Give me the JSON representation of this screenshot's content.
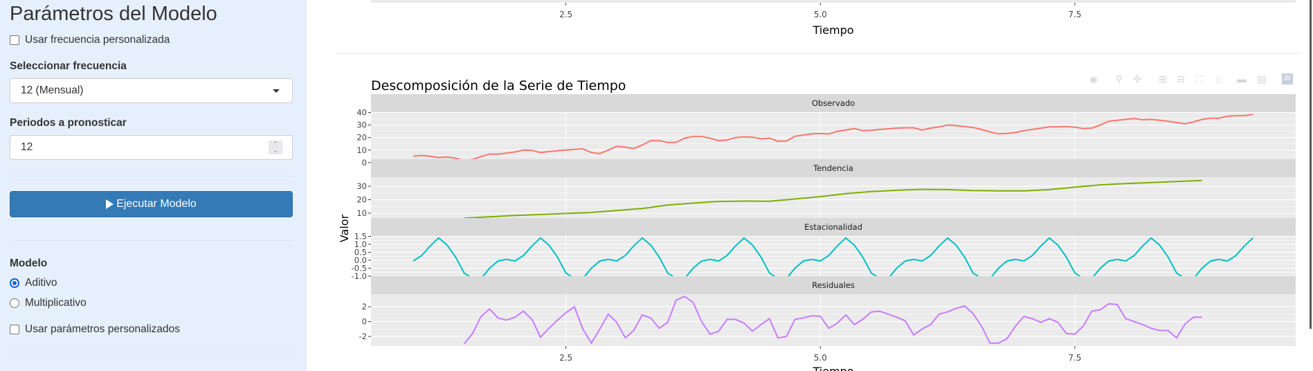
{
  "sidebar": {
    "title": "Parámetros del Modelo",
    "custom_freq_label": "Usar frecuencia personalizada",
    "custom_freq_checked": false,
    "freq_label": "Seleccionar frecuencia",
    "freq_value": "12 (Mensual)",
    "periods_label": "Periodos a pronosticar",
    "periods_value": "12",
    "run_button": "Ejecutar Modelo",
    "model_label": "Modelo",
    "model_options": [
      "Aditivo",
      "Multiplicativo"
    ],
    "model_selected": "Aditivo",
    "custom_params_label": "Usar parámetros personalizados",
    "custom_params_checked": false
  },
  "top_chart": {
    "x_ticks": [
      "2.5",
      "5.0",
      "7.5"
    ],
    "xlabel": "Tiempo"
  },
  "modebar": {
    "icons": [
      "camera-icon",
      "zoom-icon",
      "pan-icon",
      "zoom-in-icon",
      "zoom-out-icon",
      "autoscale-icon",
      "home-icon",
      "hover-closest-icon",
      "hover-compare-icon",
      "plotly-logo-icon"
    ]
  },
  "chart_data": {
    "type": "line",
    "title": "Descomposición de la Serie de Tiempo",
    "xlabel": "Tiempo",
    "ylabel": "Valor",
    "xlim": [
      0.585,
      9.67
    ],
    "x_ticks": [
      2.5,
      5.0,
      7.5
    ],
    "x_tick_labels": [
      "2.5",
      "5.0",
      "7.5"
    ],
    "grid": true,
    "panels": [
      {
        "name": "Observado",
        "color": "#F8766D",
        "x_start": 1.0,
        "ylim": [
          2.7,
          40.3
        ],
        "y_ticks": [
          0,
          10,
          20,
          30,
          40
        ],
        "y_tick_labels": [
          "0",
          "10",
          "20",
          "30",
          "40"
        ],
        "values": [
          5,
          5.7,
          5,
          4,
          4.5,
          3.5,
          1.5,
          2.5,
          4.8,
          6.8,
          6.8,
          7.5,
          8.5,
          10,
          9.8,
          8,
          8.8,
          9.5,
          10,
          10.5,
          11,
          8,
          7.2,
          10,
          13,
          12.3,
          11.2,
          14,
          17.5,
          17.5,
          16,
          16.2,
          19.5,
          20.8,
          20.8,
          19.5,
          17.5,
          18,
          20,
          20.5,
          20.3,
          19,
          19.5,
          17,
          17.2,
          21,
          22,
          23,
          23.2,
          22.8,
          25,
          26,
          27.2,
          25.5,
          25.8,
          26.5,
          27,
          27.5,
          27.8,
          27.8,
          26,
          27.5,
          28.5,
          30,
          29.5,
          28.8,
          28,
          26.5,
          24.5,
          23,
          23.3,
          24,
          25.5,
          26.5,
          27.5,
          28.5,
          28.5,
          28.8,
          28.3,
          27.2,
          27.5,
          30,
          33,
          33.8,
          34.5,
          35.2,
          34.2,
          34.5,
          33.8,
          33,
          32,
          31,
          32.5,
          34.5,
          35.5,
          35.5,
          37,
          37.5,
          37.5,
          38.5
        ]
      },
      {
        "name": "Tendencia",
        "color": "#7CAE00",
        "x_start": 1.5,
        "ylim": [
          6.4,
          36.7
        ],
        "y_ticks": [
          10,
          20,
          30
        ],
        "y_tick_labels": [
          "10",
          "20",
          "30"
        ],
        "values": [
          6.3,
          6.63,
          6.97,
          7.3,
          7.63,
          7.97,
          8.3,
          8.53,
          8.77,
          9.0,
          9.27,
          9.53,
          9.8,
          10.03,
          10.27,
          10.5,
          11.0,
          11.5,
          12.0,
          12.5,
          13.0,
          13.5,
          14.33,
          15.17,
          16.0,
          16.5,
          17.0,
          17.5,
          17.9,
          18.3,
          18.7,
          18.8,
          18.9,
          19.0,
          18.97,
          18.93,
          18.9,
          19.43,
          19.97,
          20.5,
          21.1,
          21.7,
          22.3,
          23.03,
          23.77,
          24.5,
          25.0,
          25.5,
          26.0,
          26.33,
          26.67,
          27.0,
          27.23,
          27.47,
          27.7,
          27.63,
          27.57,
          27.5,
          27.27,
          27.03,
          26.8,
          26.73,
          26.67,
          26.6,
          26.6,
          26.6,
          26.6,
          26.9,
          27.2,
          27.5,
          28.1,
          28.7,
          29.3,
          29.87,
          30.43,
          31.0,
          31.33,
          31.67,
          32.0,
          32.23,
          32.47,
          32.7,
          32.97,
          33.23,
          33.5,
          33.77,
          34.03,
          34.3
        ]
      },
      {
        "name": "Estacionalidad",
        "color": "#00BFC4",
        "x_start": 1.0,
        "ylim": [
          -1.0,
          1.52
        ],
        "y_ticks": [
          -1.0,
          -0.5,
          0.0,
          0.5,
          1.0,
          1.5
        ],
        "y_tick_labels": [
          "-1.0",
          "-0.5",
          "0.0",
          "0.5",
          "1.0",
          "1.5"
        ],
        "values": [
          -0.05,
          0.3,
          0.9,
          1.4,
          0.95,
          0.2,
          -0.8,
          -1.15,
          -1.15,
          -0.5,
          -0.05,
          0.05,
          -0.05,
          0.3,
          0.9,
          1.4,
          0.95,
          0.2,
          -0.8,
          -1.15,
          -1.15,
          -0.5,
          -0.05,
          0.05,
          -0.05,
          0.3,
          0.9,
          1.4,
          0.95,
          0.2,
          -0.8,
          -1.15,
          -1.15,
          -0.5,
          -0.05,
          0.05,
          -0.05,
          0.3,
          0.9,
          1.4,
          0.95,
          0.2,
          -0.8,
          -1.15,
          -1.15,
          -0.5,
          -0.05,
          0.05,
          -0.05,
          0.3,
          0.9,
          1.4,
          0.95,
          0.2,
          -0.8,
          -1.15,
          -1.15,
          -0.5,
          -0.05,
          0.05,
          -0.05,
          0.3,
          0.9,
          1.4,
          0.95,
          0.2,
          -0.8,
          -1.15,
          -1.15,
          -0.5,
          -0.05,
          0.05,
          -0.05,
          0.3,
          0.9,
          1.4,
          0.95,
          0.2,
          -0.8,
          -1.15,
          -1.15,
          -0.5,
          -0.05,
          0.05,
          -0.05,
          0.3,
          0.9,
          1.4,
          0.95,
          0.2,
          -0.8,
          -1.15,
          -1.15,
          -0.5,
          -0.05,
          0.05,
          -0.05,
          0.3,
          0.9,
          1.4
        ]
      },
      {
        "name": "Residuales",
        "color": "#C77CFF",
        "x_start": 1.5,
        "ylim": [
          -3.3,
          3.7
        ],
        "y_ticks": [
          -2,
          0,
          2
        ],
        "y_tick_labels": [
          "-2",
          "0",
          "2"
        ],
        "values": [
          -3.0,
          -1.6,
          0.7,
          1.7,
          0.5,
          0.2,
          0.6,
          1.4,
          0.3,
          -2.1,
          -0.9,
          0.2,
          1.2,
          2.0,
          -1.0,
          -2.9,
          -1.0,
          1.0,
          -0.1,
          -2.2,
          -1.2,
          0.9,
          0.5,
          -0.9,
          -0.1,
          2.9,
          3.4,
          2.6,
          0.0,
          -1.7,
          -1.3,
          0.3,
          0.3,
          -0.2,
          -1.3,
          -0.4,
          0.4,
          -2.2,
          -2.0,
          0.3,
          0.5,
          0.8,
          0.7,
          -0.9,
          -0.2,
          0.9,
          -0.4,
          0.3,
          1.3,
          1.4,
          1.0,
          0.6,
          0.1,
          -1.8,
          -1.0,
          -0.4,
          1.0,
          1.3,
          1.8,
          2.1,
          1.1,
          -0.6,
          -2.9,
          -2.9,
          -2.3,
          -0.6,
          0.7,
          0.4,
          -0.1,
          0.4,
          -0.1,
          -1.6,
          -1.7,
          -0.6,
          1.4,
          1.6,
          2.4,
          2.3,
          0.4,
          0.0,
          -0.4,
          -0.9,
          -1.2,
          -1.2,
          -2.2,
          -0.3,
          0.6,
          0.6
        ]
      }
    ]
  }
}
